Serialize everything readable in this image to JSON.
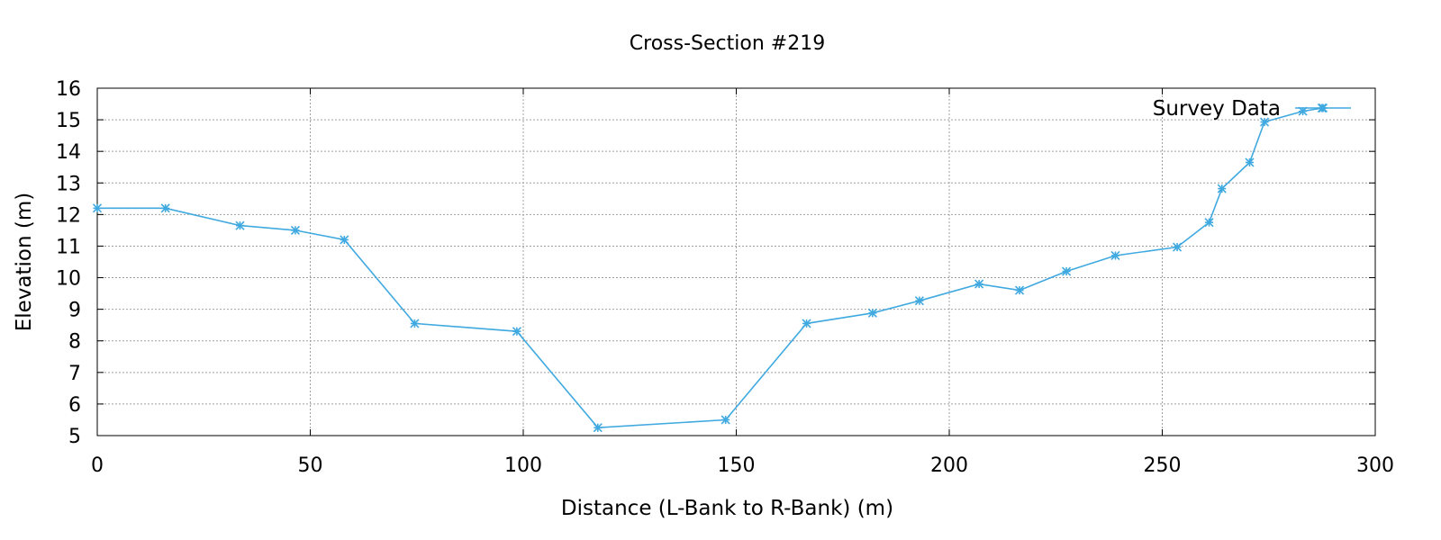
{
  "chart_data": {
    "type": "line",
    "title": "Cross-Section #219",
    "xlabel": "Distance (L-Bank to R-Bank) (m)",
    "ylabel": "Elevation (m)",
    "xlim": [
      0,
      300
    ],
    "ylim": [
      5,
      16
    ],
    "xticks": [
      0,
      50,
      100,
      150,
      200,
      250,
      300
    ],
    "yticks": [
      5,
      6,
      7,
      8,
      9,
      10,
      11,
      12,
      13,
      14,
      15,
      16
    ],
    "grid": true,
    "legend_position": "top-right",
    "series": [
      {
        "name": "Survey Data",
        "color": "#3fa9e0",
        "marker": "asterisk",
        "x": [
          0,
          16,
          33.5,
          46.5,
          58,
          74.5,
          98.5,
          117.5,
          147.5,
          166.5,
          182,
          193,
          207,
          216.5,
          227.5,
          239,
          253.5,
          261,
          264,
          270.5,
          274,
          283,
          287.5
        ],
        "y": [
          12.2,
          12.2,
          11.65,
          11.5,
          11.2,
          8.55,
          8.3,
          5.25,
          5.5,
          8.55,
          8.88,
          9.27,
          9.8,
          9.6,
          10.2,
          10.7,
          10.97,
          11.75,
          12.82,
          13.65,
          14.93,
          15.27,
          15.37
        ]
      }
    ]
  }
}
